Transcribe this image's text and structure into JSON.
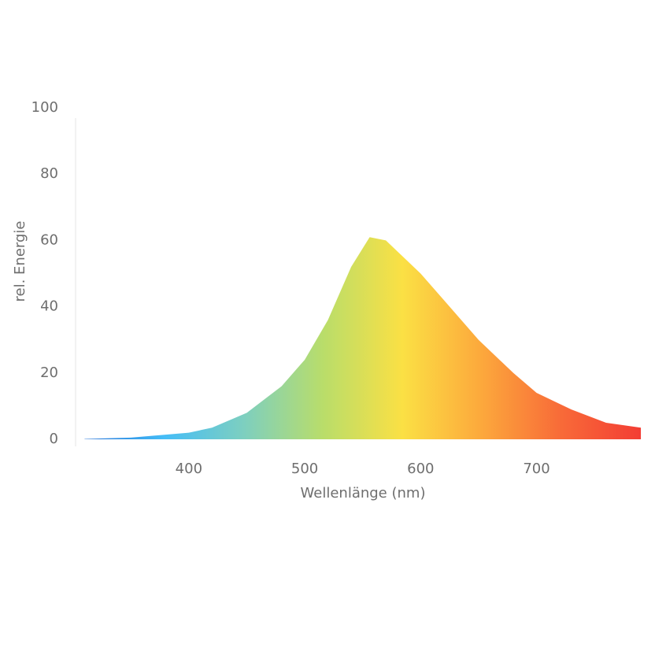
{
  "chart_data": {
    "type": "area",
    "x_label": "Wellenlänge (nm)",
    "y_label": "rel. Energie",
    "x": [
      310,
      350,
      400,
      420,
      450,
      480,
      500,
      520,
      540,
      556,
      570,
      600,
      620,
      650,
      680,
      700,
      730,
      760,
      790
    ],
    "values": [
      0.1,
      0.5,
      2,
      3.5,
      8,
      16,
      24,
      36,
      52,
      61,
      60,
      50,
      42,
      30,
      20,
      14,
      9,
      5,
      3.5
    ],
    "colors": [
      "#1f6fd8",
      "#45bdf7",
      "#7dcfc0",
      "#b9dd6a",
      "#fbe044",
      "#fca83c",
      "#f86a38",
      "#f33d34"
    ],
    "xlim": [
      305,
      792
    ],
    "ylim": [
      0,
      100
    ],
    "xticks": [
      400,
      500,
      600,
      700
    ],
    "yticks": [
      0,
      20,
      40,
      60,
      80,
      100
    ],
    "grid": false
  }
}
